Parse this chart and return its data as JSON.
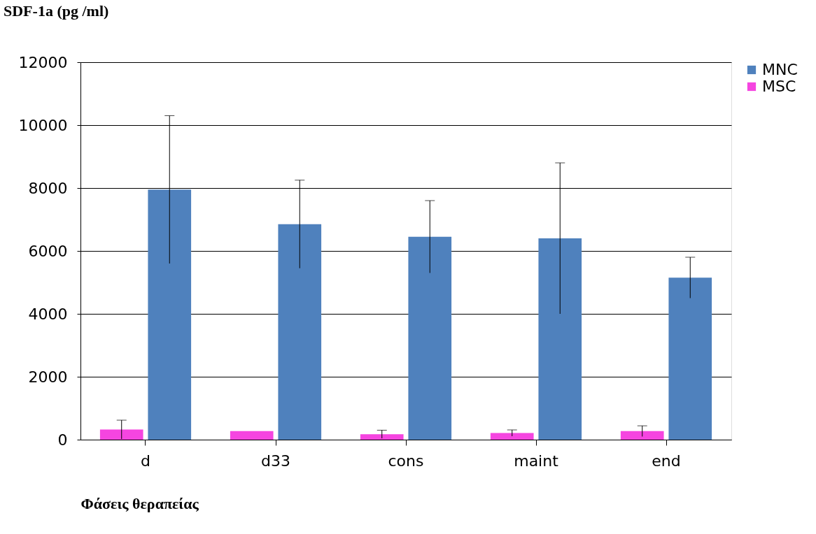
{
  "chart_data": {
    "type": "bar",
    "title": "SDF-1a (pg /ml)",
    "xlabel": "Φάσεις θεραπείας",
    "categories": [
      "d",
      "d33",
      "cons",
      "maint",
      "end"
    ],
    "series": [
      {
        "name": "MSC",
        "color": "#f545e0",
        "values": [
          320,
          270,
          170,
          210,
          270
        ],
        "errors": [
          300,
          null,
          130,
          100,
          170
        ]
      },
      {
        "name": "MNC",
        "color": "#4f81bd",
        "values": [
          7950,
          6850,
          6450,
          6400,
          5150
        ],
        "errors": [
          2350,
          1400,
          1150,
          2400,
          650
        ]
      }
    ],
    "ylim": [
      0,
      12000
    ],
    "yticks": [
      0,
      2000,
      4000,
      6000,
      8000,
      10000,
      12000
    ],
    "grid": "y",
    "legend": "right"
  }
}
